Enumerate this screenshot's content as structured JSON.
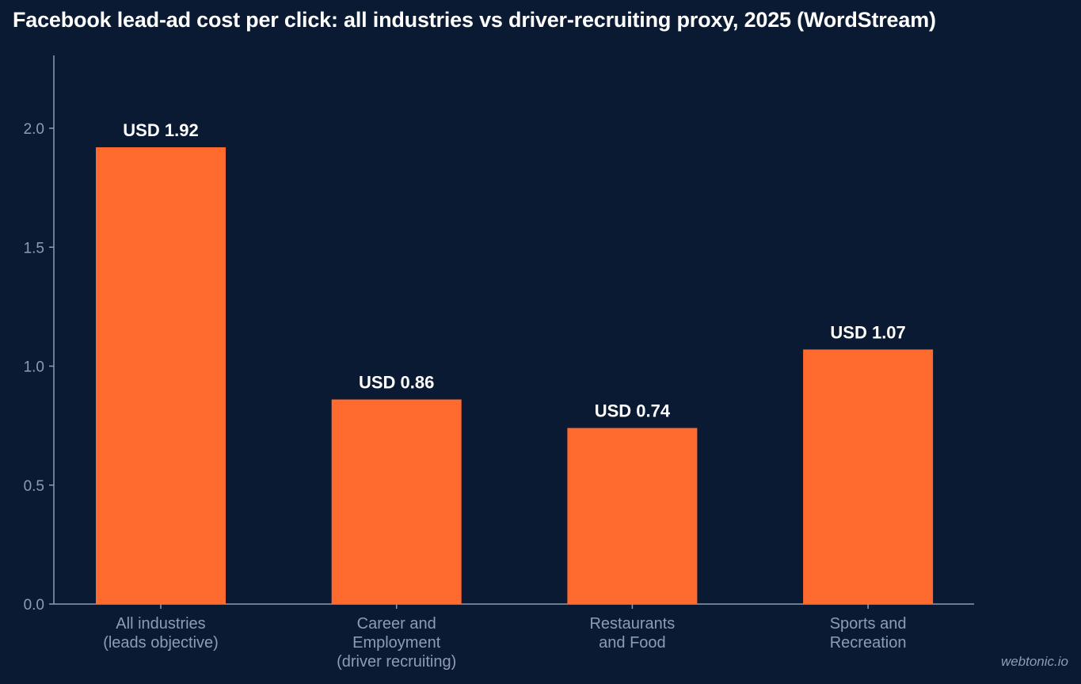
{
  "chart_data": {
    "type": "bar",
    "title": "Facebook lead-ad cost per click: all industries vs driver-recruiting proxy, 2025 (WordStream)",
    "categories": [
      [
        "All industries",
        "(leads objective)"
      ],
      [
        "Career and",
        "Employment",
        "(driver recruiting)"
      ],
      [
        "Restaurants",
        "and Food"
      ],
      [
        "Sports and",
        "Recreation"
      ]
    ],
    "values": [
      1.92,
      0.86,
      0.74,
      1.07
    ],
    "data_labels": [
      "USD 1.92",
      "USD 0.86",
      "USD 0.74",
      "USD 1.07"
    ],
    "yticks": [
      "0.0",
      "0.5",
      "1.0",
      "1.5",
      "2.0"
    ],
    "ylim": [
      0,
      2.3
    ],
    "xlabel": "",
    "ylabel": "",
    "grid": false,
    "bar_color": "#ff6b2e"
  },
  "watermark": "webtonic.io"
}
